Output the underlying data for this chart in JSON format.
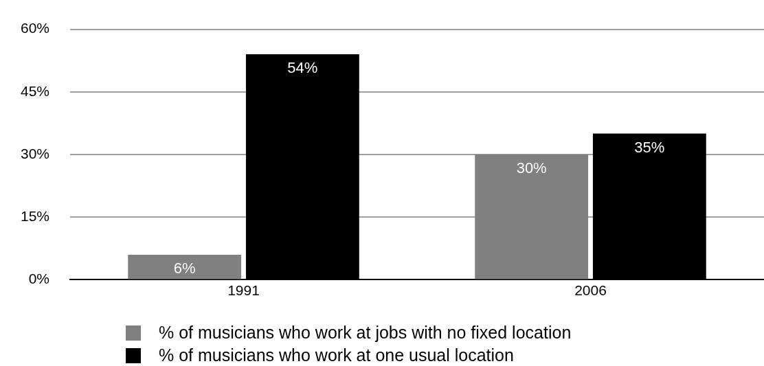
{
  "chart_data": {
    "type": "bar",
    "categories": [
      "1991",
      "2006"
    ],
    "series": [
      {
        "name": "% of musicians who work at jobs with no fixed location",
        "color": "#808080",
        "values": [
          6,
          30
        ]
      },
      {
        "name": "% of musicians who work at one usual location",
        "color": "#000000",
        "values": [
          54,
          35
        ]
      }
    ],
    "value_labels": [
      [
        "6%",
        "30%"
      ],
      [
        "54%",
        "35%"
      ]
    ],
    "ylim": [
      0,
      60
    ],
    "yticks": [
      {
        "value": 0,
        "label": "0%"
      },
      {
        "value": 15,
        "label": "15%"
      },
      {
        "value": 30,
        "label": "30%"
      },
      {
        "value": 45,
        "label": "45%"
      },
      {
        "value": 60,
        "label": "60%"
      }
    ],
    "grid": "y",
    "legend": "bottom"
  }
}
